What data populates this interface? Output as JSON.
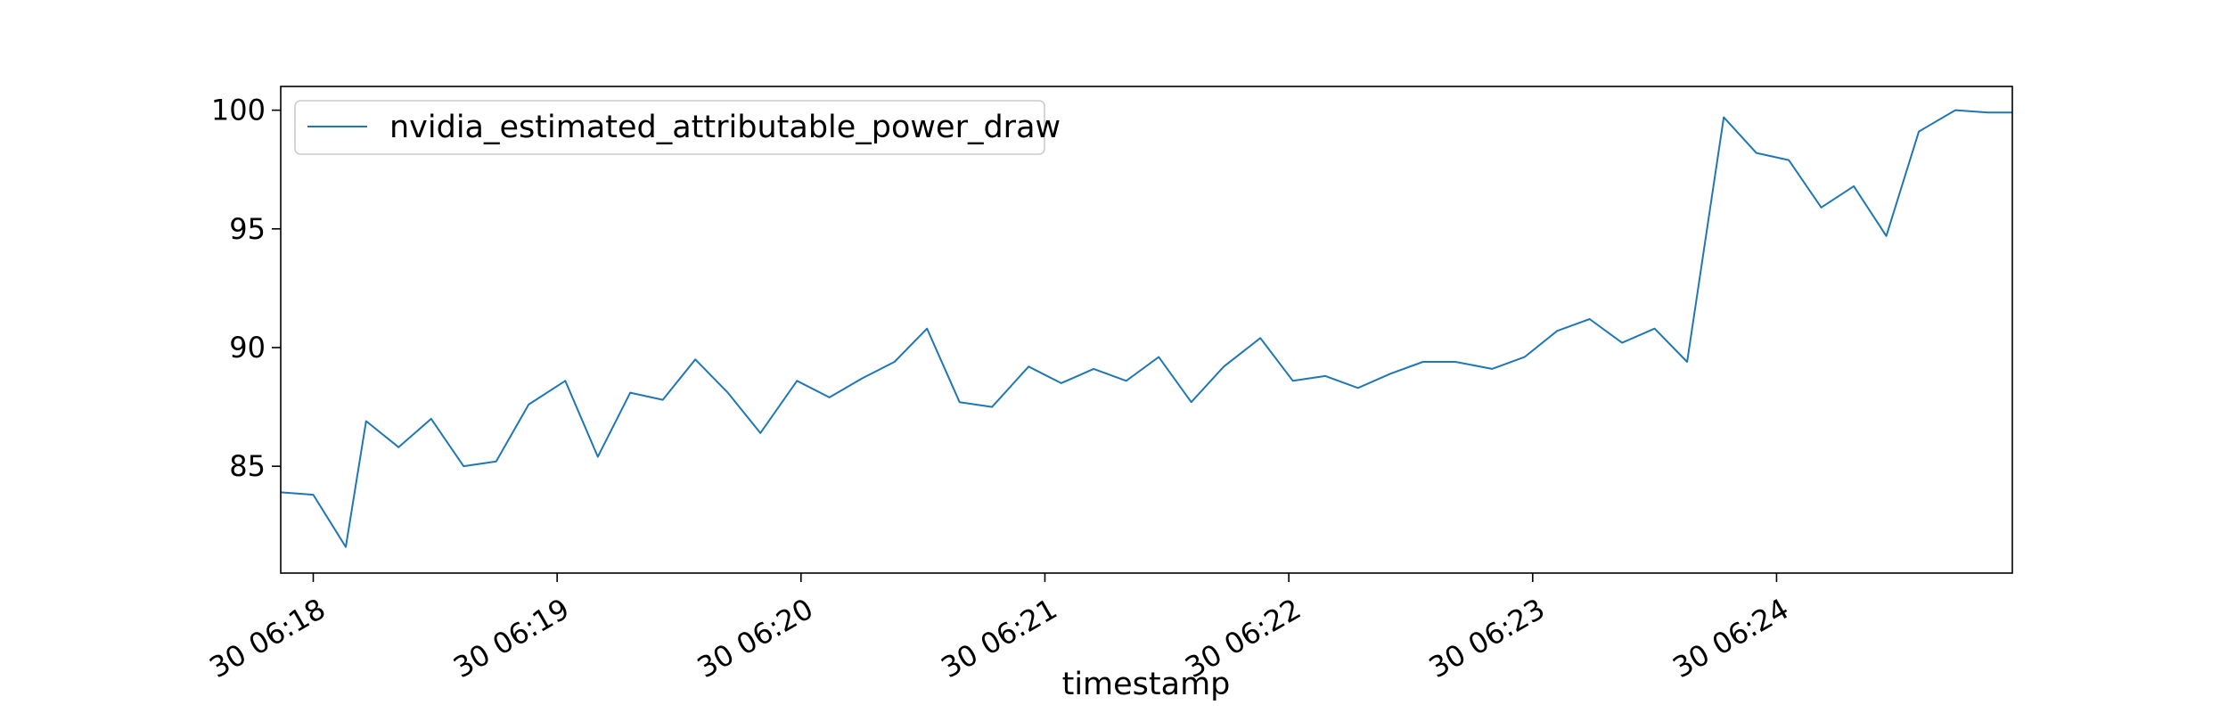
{
  "chart_data": {
    "type": "line",
    "xlabel": "timestamp",
    "ylabel": "",
    "ylim": [
      80.5,
      101
    ],
    "xlim": [
      "30 06:17:52",
      "30 06:24:58"
    ],
    "grid": false,
    "legend_position": "upper-left",
    "x_tick_labels": [
      "30 06:18",
      "30 06:19",
      "30 06:20",
      "30 06:21",
      "30 06:22",
      "30 06:23",
      "30 06:24"
    ],
    "x_tick_times": [
      "30 06:18:00",
      "30 06:19:00",
      "30 06:20:00",
      "30 06:21:00",
      "30 06:22:00",
      "30 06:23:00",
      "30 06:24:00"
    ],
    "y_ticks": [
      85,
      90,
      95,
      100
    ],
    "series": [
      {
        "name": "nvidia_estimated_attributable_power_draw",
        "color": "#1f77b4",
        "x": [
          "30 06:17:52",
          "30 06:18:00",
          "30 06:18:08",
          "30 06:18:13",
          "30 06:18:21",
          "30 06:18:29",
          "30 06:18:37",
          "30 06:18:45",
          "30 06:18:53",
          "30 06:19:02",
          "30 06:19:10",
          "30 06:19:18",
          "30 06:19:26",
          "30 06:19:34",
          "30 06:19:42",
          "30 06:19:50",
          "30 06:19:59",
          "30 06:20:07",
          "30 06:20:15",
          "30 06:20:23",
          "30 06:20:31",
          "30 06:20:39",
          "30 06:20:47",
          "30 06:20:56",
          "30 06:21:04",
          "30 06:21:12",
          "30 06:21:20",
          "30 06:21:28",
          "30 06:21:36",
          "30 06:21:44",
          "30 06:21:53",
          "30 06:22:01",
          "30 06:22:09",
          "30 06:22:17",
          "30 06:22:25",
          "30 06:22:33",
          "30 06:22:41",
          "30 06:22:50",
          "30 06:22:58",
          "30 06:23:06",
          "30 06:23:14",
          "30 06:23:22",
          "30 06:23:30",
          "30 06:23:38",
          "30 06:23:47",
          "30 06:23:55",
          "30 06:24:03",
          "30 06:24:11",
          "30 06:24:19",
          "30 06:24:27",
          "30 06:24:35",
          "30 06:24:44",
          "30 06:24:52",
          "30 06:24:58"
        ],
        "values": [
          83.9,
          83.8,
          81.6,
          86.9,
          85.8,
          87.0,
          85.0,
          85.2,
          87.6,
          88.6,
          85.4,
          88.1,
          87.8,
          89.5,
          88.1,
          86.4,
          88.6,
          87.9,
          88.7,
          89.4,
          90.8,
          87.7,
          87.5,
          89.2,
          88.5,
          89.1,
          88.6,
          89.6,
          87.7,
          89.2,
          90.4,
          88.6,
          88.8,
          88.3,
          88.9,
          89.4,
          89.4,
          89.1,
          89.6,
          90.7,
          91.2,
          90.2,
          90.8,
          89.4,
          99.7,
          98.2,
          97.9,
          95.9,
          96.8,
          94.7,
          99.1,
          100.0,
          99.9,
          99.9
        ]
      }
    ]
  }
}
